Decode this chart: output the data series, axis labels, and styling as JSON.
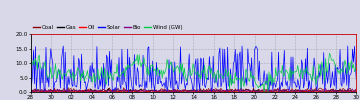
{
  "legend_labels": [
    "Coal",
    "Gas",
    "Oil",
    "Solar",
    "Bio",
    "Wind (GW)"
  ],
  "legend_colors": [
    "#8b0000",
    "#000000",
    "#ff0000",
    "#0000ff",
    "#800080",
    "#00cc44"
  ],
  "ylim": [
    0.0,
    20.0
  ],
  "yticks": [
    0.0,
    5.0,
    10.0,
    15.0,
    20.0
  ],
  "ytick_labels": [
    "0.0",
    "5.0",
    "10.0",
    "15.0",
    "20.0"
  ],
  "xtick_labels": [
    "28",
    "30",
    "02",
    "04",
    "06",
    "08",
    "10",
    "12",
    "14",
    "16",
    "18",
    "20",
    "22",
    "24",
    "26",
    "28",
    "30"
  ],
  "background_color": "#d8d8e8",
  "plot_bg_color": "#d8d8e8",
  "n_points": 340,
  "seed": 42
}
